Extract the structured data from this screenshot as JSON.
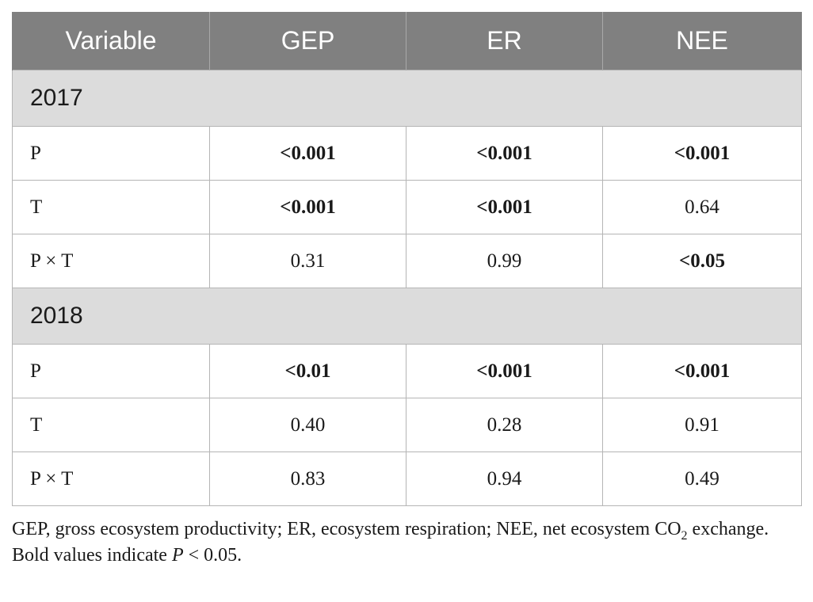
{
  "table": {
    "headers": [
      "Variable",
      "GEP",
      "ER",
      "NEE"
    ],
    "sections": [
      {
        "label": "2017",
        "rows": [
          {
            "variable": "P",
            "cells": [
              {
                "text": "<0.001",
                "bold": true
              },
              {
                "text": "<0.001",
                "bold": true
              },
              {
                "text": "<0.001",
                "bold": true
              }
            ]
          },
          {
            "variable": "T",
            "cells": [
              {
                "text": "<0.001",
                "bold": true
              },
              {
                "text": "<0.001",
                "bold": true
              },
              {
                "text": "0.64",
                "bold": false
              }
            ]
          },
          {
            "variable": "P × T",
            "cells": [
              {
                "text": "0.31",
                "bold": false
              },
              {
                "text": "0.99",
                "bold": false
              },
              {
                "text": "<0.05",
                "bold": true
              }
            ]
          }
        ]
      },
      {
        "label": "2018",
        "rows": [
          {
            "variable": "P",
            "cells": [
              {
                "text": "<0.01",
                "bold": true
              },
              {
                "text": "<0.001",
                "bold": true
              },
              {
                "text": "<0.001",
                "bold": true
              }
            ]
          },
          {
            "variable": "T",
            "cells": [
              {
                "text": "0.40",
                "bold": false
              },
              {
                "text": "0.28",
                "bold": false
              },
              {
                "text": "0.91",
                "bold": false
              }
            ]
          },
          {
            "variable": "P × T",
            "cells": [
              {
                "text": "0.83",
                "bold": false
              },
              {
                "text": "0.94",
                "bold": false
              },
              {
                "text": "0.49",
                "bold": false
              }
            ]
          }
        ]
      }
    ]
  },
  "footnotes": {
    "abbreviations": {
      "part1": "GEP, gross ecosystem productivity; ER, ecosystem respiration; NEE, net ecosystem CO",
      "subscript": "2",
      "part2": " exchange."
    },
    "bold_note": {
      "prefix": "Bold values indicate ",
      "italic": "P",
      "suffix": " < 0.05."
    }
  }
}
